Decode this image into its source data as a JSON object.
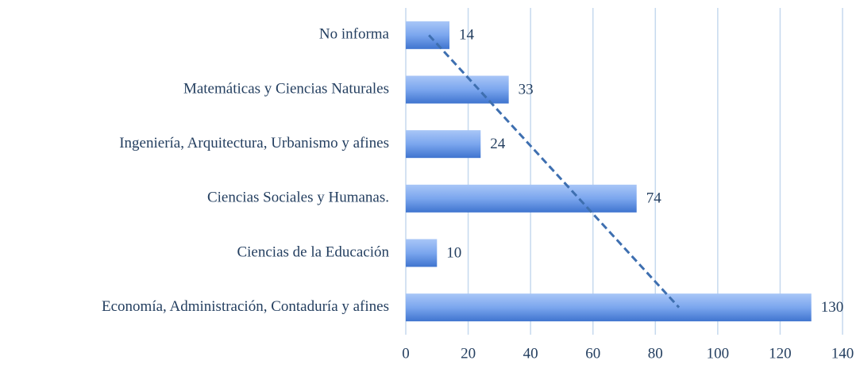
{
  "chart_data": {
    "type": "bar",
    "orientation": "horizontal",
    "categories": [
      "No informa",
      "Matemáticas y Ciencias Naturales",
      "Ingeniería, Arquitectura, Urbanismo y afines",
      "Ciencias Sociales y Humanas.",
      "Ciencias de la Educación",
      "Economía, Administración, Contaduría y afines"
    ],
    "values": [
      14,
      33,
      24,
      74,
      10,
      130
    ],
    "color": "#5b8fe0",
    "xlim": [
      0,
      140
    ],
    "xticks": [
      0,
      20,
      40,
      60,
      80,
      100,
      120,
      140
    ],
    "grid": true,
    "trendline": "linear"
  }
}
